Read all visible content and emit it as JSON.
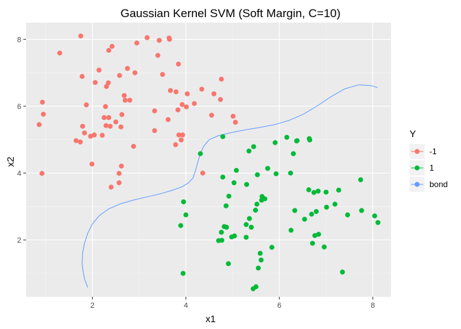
{
  "chart_data": {
    "type": "scatter",
    "title": "Gaussian Kernel SVM (Soft Margin, C=10)",
    "xlabel": "x1",
    "ylabel": "x2",
    "xlim": [
      0.58,
      8.39
    ],
    "ylim": [
      0.3,
      8.5
    ],
    "x_ticks": [
      2,
      4,
      6,
      8
    ],
    "y_ticks": [
      2,
      4,
      6,
      8
    ],
    "grid": true,
    "legend": {
      "title": "Y",
      "placement": "right",
      "entries": [
        {
          "label": "-1",
          "color": "#F8766D"
        },
        {
          "label": "1",
          "color": "#00BA38"
        },
        {
          "label": "bond",
          "color": "#619CFF"
        }
      ]
    },
    "series": [
      {
        "name": "-1",
        "color": "#F8766D",
        "points": [
          [
            0.86,
            5.45
          ],
          [
            0.93,
            6.12
          ],
          [
            0.95,
            5.76
          ],
          [
            0.92,
            3.99
          ],
          [
            1.3,
            7.59
          ],
          [
            1.75,
            8.1
          ],
          [
            1.78,
            6.89
          ],
          [
            1.87,
            6.04
          ],
          [
            1.79,
            5.4
          ],
          [
            1.83,
            5.2
          ],
          [
            1.65,
            4.97
          ],
          [
            1.74,
            4.93
          ],
          [
            1.96,
            5.1
          ],
          [
            2.04,
            5.14
          ],
          [
            1.99,
            4.27
          ],
          [
            2.06,
            6.71
          ],
          [
            2.14,
            7.08
          ],
          [
            2.3,
            6.59
          ],
          [
            2.25,
            5.66
          ],
          [
            2.35,
            5.66
          ],
          [
            2.29,
            5.42
          ],
          [
            2.38,
            5.4
          ],
          [
            2.28,
            5.99
          ],
          [
            2.21,
            5.13
          ],
          [
            2.34,
            6.7
          ],
          [
            2.42,
            7.79
          ],
          [
            2.35,
            7.67
          ],
          [
            2.58,
            6.92
          ],
          [
            2.61,
            5.38
          ],
          [
            2.5,
            5.53
          ],
          [
            2.4,
            3.58
          ],
          [
            2.57,
            3.71
          ],
          [
            2.57,
            3.99
          ],
          [
            2.62,
            4.21
          ],
          [
            2.63,
            5.75
          ],
          [
            2.7,
            6.18
          ],
          [
            2.68,
            6.32
          ],
          [
            2.8,
            6.18
          ],
          [
            2.75,
            7.13
          ],
          [
            2.88,
            4.8
          ],
          [
            2.91,
            7.0
          ],
          [
            2.95,
            7.89
          ],
          [
            3.17,
            8.05
          ],
          [
            3.33,
            5.86
          ],
          [
            3.33,
            5.27
          ],
          [
            3.43,
            7.97
          ],
          [
            3.64,
            8.04
          ],
          [
            3.65,
            8.0
          ],
          [
            3.67,
            6.47
          ],
          [
            3.62,
            5.6
          ],
          [
            3.79,
            6.43
          ],
          [
            3.83,
            5.89
          ],
          [
            3.85,
            5.14
          ],
          [
            3.93,
            5.14
          ],
          [
            3.78,
            4.85
          ],
          [
            3.9,
            4.99
          ],
          [
            3.92,
            6.05
          ],
          [
            3.84,
            7.26
          ],
          [
            4.03,
            6.37
          ],
          [
            4.01,
            5.98
          ],
          [
            4.18,
            6.08
          ],
          [
            4.34,
            6.51
          ],
          [
            4.36,
            4.0
          ],
          [
            4.55,
            5.73
          ],
          [
            4.76,
            6.81
          ],
          [
            4.74,
            6.2
          ],
          [
            4.6,
            6.37
          ],
          [
            5.01,
            5.7
          ],
          [
            5.06,
            5.52
          ],
          [
            3.5,
            6.95
          ],
          [
            3.4,
            7.52
          ]
        ]
      },
      {
        "name": "1",
        "color": "#00BA38",
        "points": [
          [
            4.31,
            4.58
          ],
          [
            4.79,
            5.09
          ],
          [
            5.08,
            4.08
          ],
          [
            4.79,
            3.88
          ],
          [
            4.92,
            3.31
          ],
          [
            4.98,
            2.09
          ],
          [
            4.91,
            1.29
          ],
          [
            5.04,
            2.12
          ],
          [
            4.87,
            2.38
          ],
          [
            4.76,
            2.23
          ],
          [
            4.77,
            1.99
          ],
          [
            4.7,
            1.98
          ],
          [
            4.82,
            2.4
          ],
          [
            4.86,
            3.02
          ],
          [
            5.03,
            3.71
          ],
          [
            5.3,
            3.66
          ],
          [
            5.35,
            4.66
          ],
          [
            5.45,
            4.79
          ],
          [
            5.53,
            3.95
          ],
          [
            5.62,
            3.19
          ],
          [
            5.63,
            3.3
          ],
          [
            5.69,
            3.23
          ],
          [
            5.52,
            3.07
          ],
          [
            5.49,
            2.89
          ],
          [
            5.36,
            2.64
          ],
          [
            5.4,
            2.38
          ],
          [
            5.29,
            2.46
          ],
          [
            5.29,
            2.08
          ],
          [
            5.59,
            1.6
          ],
          [
            5.61,
            1.4
          ],
          [
            5.55,
            1.16
          ],
          [
            5.5,
            0.6
          ],
          [
            5.44,
            0.54
          ],
          [
            5.75,
            4.14
          ],
          [
            5.93,
            3.98
          ],
          [
            5.91,
            4.91
          ],
          [
            5.84,
            1.78
          ],
          [
            6.16,
            5.07
          ],
          [
            6.3,
            4.58
          ],
          [
            6.37,
            4.96
          ],
          [
            6.38,
            4.97
          ],
          [
            6.64,
            5.03
          ],
          [
            6.65,
            4.99
          ],
          [
            6.63,
            3.5
          ],
          [
            6.74,
            3.42
          ],
          [
            6.24,
            4.0
          ],
          [
            6.33,
            2.88
          ],
          [
            6.25,
            2.29
          ],
          [
            6.54,
            2.62
          ],
          [
            6.69,
            2.77
          ],
          [
            6.79,
            2.85
          ],
          [
            6.76,
            2.13
          ],
          [
            6.71,
            1.9
          ],
          [
            6.84,
            2.17
          ],
          [
            6.96,
            1.79
          ],
          [
            7.0,
            3.43
          ],
          [
            7.01,
            2.98
          ],
          [
            7.19,
            3.07
          ],
          [
            7.27,
            3.49
          ],
          [
            7.46,
            2.75
          ],
          [
            7.74,
            3.8
          ],
          [
            7.76,
            2.88
          ],
          [
            7.35,
            1.04
          ],
          [
            8.04,
            2.72
          ],
          [
            8.11,
            2.52
          ],
          [
            4.0,
            2.75
          ],
          [
            3.95,
            3.14
          ],
          [
            3.89,
            2.43
          ],
          [
            3.94,
            1.0
          ],
          [
            6.83,
            3.46
          ]
        ]
      },
      {
        "name": "bond",
        "color": "#619CFF",
        "line": [
          [
            1.9,
            0.58
          ],
          [
            1.84,
            0.8
          ],
          [
            1.8,
            1.05
          ],
          [
            1.78,
            1.3
          ],
          [
            1.79,
            1.6
          ],
          [
            1.83,
            1.9
          ],
          [
            1.9,
            2.2
          ],
          [
            2.0,
            2.48
          ],
          [
            2.15,
            2.73
          ],
          [
            2.35,
            2.93
          ],
          [
            2.6,
            3.08
          ],
          [
            2.9,
            3.2
          ],
          [
            3.2,
            3.3
          ],
          [
            3.45,
            3.38
          ],
          [
            3.7,
            3.48
          ],
          [
            3.9,
            3.58
          ],
          [
            4.05,
            3.7
          ],
          [
            4.15,
            3.85
          ],
          [
            4.2,
            4.05
          ],
          [
            4.25,
            4.3
          ],
          [
            4.3,
            4.55
          ],
          [
            4.38,
            4.8
          ],
          [
            4.5,
            5.0
          ],
          [
            4.7,
            5.12
          ],
          [
            5.0,
            5.22
          ],
          [
            5.3,
            5.3
          ],
          [
            5.6,
            5.37
          ],
          [
            5.9,
            5.45
          ],
          [
            6.2,
            5.57
          ],
          [
            6.5,
            5.75
          ],
          [
            6.8,
            6.0
          ],
          [
            7.1,
            6.28
          ],
          [
            7.4,
            6.52
          ],
          [
            7.7,
            6.64
          ],
          [
            7.95,
            6.62
          ],
          [
            8.1,
            6.56
          ]
        ]
      }
    ]
  }
}
